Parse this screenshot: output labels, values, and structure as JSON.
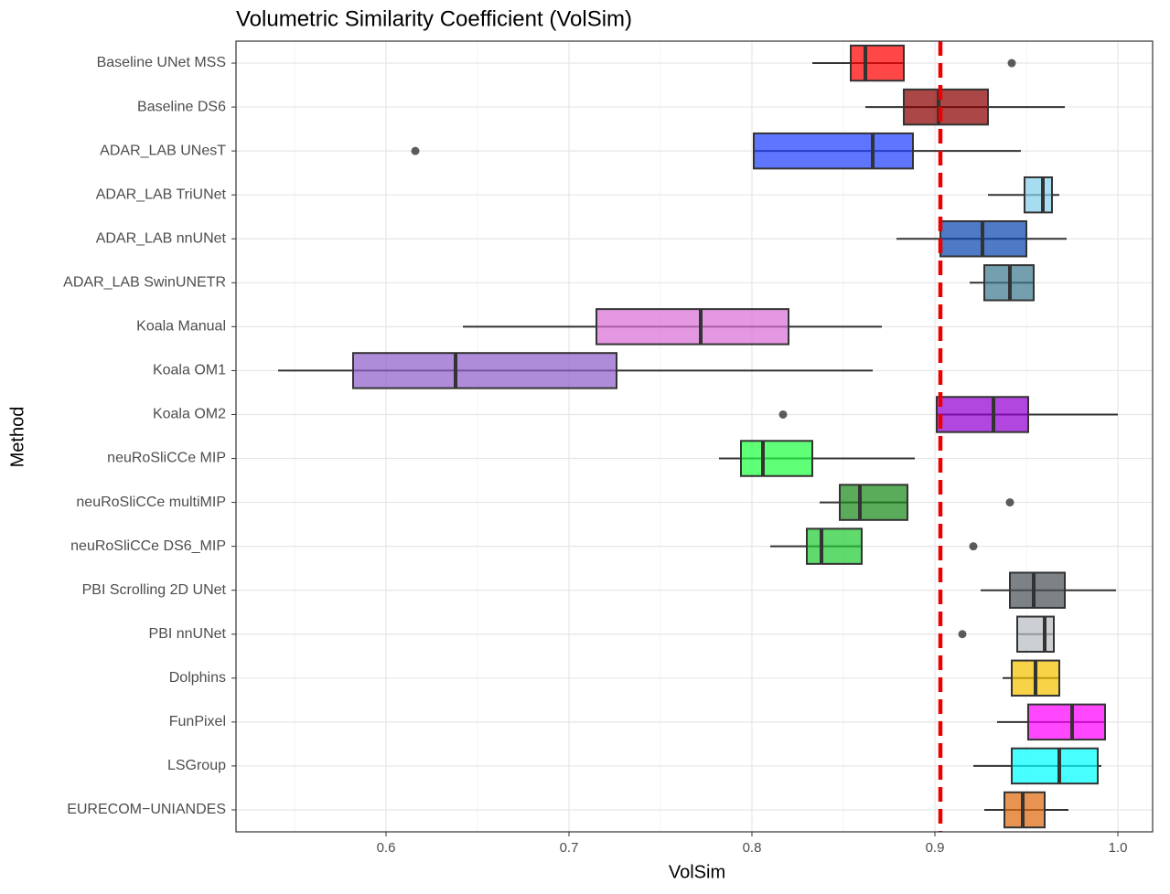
{
  "chart_data": {
    "type": "boxplot",
    "title": "Volumetric Similarity Coefficient (VolSim)",
    "x_label": "VolSim",
    "y_label": "Method",
    "xlim": [
      0.518,
      1.019
    ],
    "xticks": [
      0.6,
      0.7,
      0.8,
      0.9,
      {
        "value": 1,
        "label": "1.0"
      }
    ],
    "xminor": [
      0.55,
      0.65,
      0.75,
      0.85,
      0.95
    ],
    "grid": true,
    "reference_line": {
      "value": 0.903,
      "color": "#ee0000"
    },
    "boxes": [
      {
        "name": "Baseline UNet MSS",
        "color": "#ff0000",
        "low": 0.833,
        "q1": 0.854,
        "median": 0.862,
        "q3": 0.883,
        "high": 0.883,
        "outliers": [
          0.942
        ]
      },
      {
        "name": "Baseline DS6",
        "color": "#8b0000",
        "low": 0.862,
        "q1": 0.883,
        "median": 0.902,
        "q3": 0.929,
        "high": 0.971,
        "outliers": []
      },
      {
        "name": "ADAR_LAB UNesT",
        "color": "#2040ff",
        "low": 0.801,
        "q1": 0.801,
        "median": 0.866,
        "q3": 0.888,
        "high": 0.947,
        "outliers": [
          0.616
        ]
      },
      {
        "name": "ADAR_LAB TriUNet",
        "color": "#87ceeb",
        "low": 0.929,
        "q1": 0.949,
        "median": 0.959,
        "q3": 0.964,
        "high": 0.968,
        "outliers": []
      },
      {
        "name": "ADAR_LAB nnUNet",
        "color": "#0a46b0",
        "low": 0.879,
        "q1": 0.903,
        "median": 0.926,
        "q3": 0.95,
        "high": 0.972,
        "outliers": []
      },
      {
        "name": "ADAR_LAB SwinUNETR",
        "color": "#3e7a90",
        "low": 0.919,
        "q1": 0.927,
        "median": 0.941,
        "q3": 0.954,
        "high": 0.954,
        "outliers": []
      },
      {
        "name": "Koala Manual",
        "color": "#da70d6",
        "low": 0.642,
        "q1": 0.715,
        "median": 0.772,
        "q3": 0.82,
        "high": 0.871,
        "outliers": []
      },
      {
        "name": "Koala OM1",
        "color": "#9060cc",
        "low": 0.541,
        "q1": 0.582,
        "median": 0.638,
        "q3": 0.726,
        "high": 0.866,
        "outliers": []
      },
      {
        "name": "Koala OM2",
        "color": "#9400d3",
        "low": 0.901,
        "q1": 0.901,
        "median": 0.932,
        "q3": 0.951,
        "high": 1.0,
        "outliers": [
          0.817
        ]
      },
      {
        "name": "neuRoSliCCe MIP",
        "color": "#22ff44",
        "low": 0.782,
        "q1": 0.794,
        "median": 0.806,
        "q3": 0.833,
        "high": 0.889,
        "outliers": []
      },
      {
        "name": "neuRoSliCCe multiMIP",
        "color": "#1a8a1a",
        "low": 0.837,
        "q1": 0.848,
        "median": 0.859,
        "q3": 0.885,
        "high": 0.885,
        "outliers": [
          0.941
        ]
      },
      {
        "name": "neuRoSliCCe DS6_MIP",
        "color": "#22cc33",
        "low": 0.81,
        "q1": 0.83,
        "median": 0.838,
        "q3": 0.86,
        "high": 0.86,
        "outliers": [
          0.921
        ]
      },
      {
        "name": "PBI Scrolling 2D UNet",
        "color": "#4a5256",
        "low": 0.925,
        "q1": 0.941,
        "median": 0.954,
        "q3": 0.971,
        "high": 0.999,
        "outliers": []
      },
      {
        "name": "PBI nnUNet",
        "color": "#b8bec4",
        "low": 0.945,
        "q1": 0.945,
        "median": 0.96,
        "q3": 0.965,
        "high": 0.965,
        "outliers": [
          0.915
        ]
      },
      {
        "name": "Dolphins",
        "color": "#f5c000",
        "low": 0.937,
        "q1": 0.942,
        "median": 0.955,
        "q3": 0.968,
        "high": 0.968,
        "outliers": []
      },
      {
        "name": "FunPixel",
        "color": "#ff00ff",
        "low": 0.934,
        "q1": 0.951,
        "median": 0.975,
        "q3": 0.993,
        "high": 0.993,
        "outliers": []
      },
      {
        "name": "LSGroup",
        "color": "#00ffff",
        "low": 0.921,
        "q1": 0.942,
        "median": 0.968,
        "q3": 0.989,
        "high": 0.991,
        "outliers": []
      },
      {
        "name": "EURECOM−UNIANDES",
        "color": "#e06a10",
        "low": 0.927,
        "q1": 0.938,
        "median": 0.948,
        "q3": 0.96,
        "high": 0.973,
        "outliers": []
      }
    ]
  }
}
